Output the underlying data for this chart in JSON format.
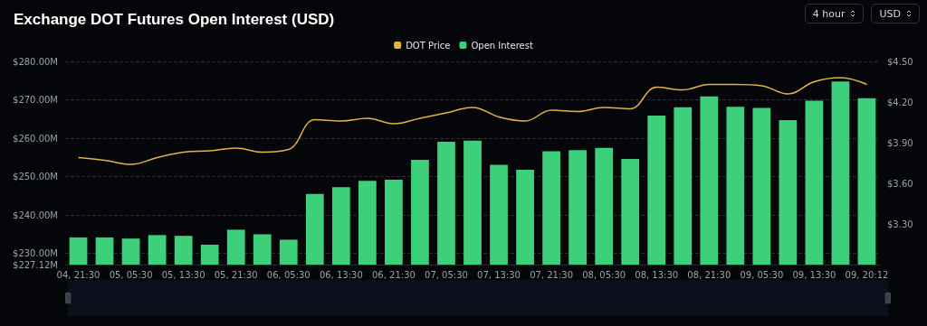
{
  "chart_data": {
    "type": "bar",
    "title": "Exchange DOT Futures Open Interest (USD)",
    "annotations": [
      "4 hour",
      "USD"
    ],
    "categories": [
      "04, 21:30",
      null,
      "05, 05:30",
      null,
      "05, 13:30",
      null,
      "05, 21:30",
      null,
      "06, 05:30",
      null,
      "06, 13:30",
      null,
      "06, 21:30",
      null,
      "07, 05:30",
      null,
      "07, 13:30",
      null,
      "07, 21:30",
      null,
      "08, 05:30",
      null,
      "08, 13:30",
      null,
      "08, 21:30",
      null,
      "09, 05:30",
      null,
      "09, 13:30",
      null,
      "09, 20:12"
    ],
    "series": [
      {
        "name": "DOT Price",
        "type": "line",
        "axis": "y2",
        "color": "#e3b341",
        "values": [
          3.79,
          3.77,
          3.74,
          3.79,
          3.83,
          3.84,
          3.86,
          3.83,
          3.85,
          4.07,
          4.06,
          4.08,
          4.04,
          4.08,
          4.12,
          4.16,
          4.09,
          4.06,
          4.14,
          4.13,
          4.16,
          4.15,
          4.31,
          4.29,
          4.33,
          4.33,
          4.32,
          4.26,
          4.35,
          4.38,
          4.33
        ]
      },
      {
        "name": "Open Interest",
        "color": "#3ecf7a",
        "values": [
          234.2,
          234.2,
          233.9,
          234.8,
          234.6,
          232.3,
          236.2,
          235.0,
          233.6,
          245.5,
          247.3,
          248.9,
          249.2,
          254.4,
          259.1,
          259.4,
          253.1,
          251.8,
          256.6,
          256.9,
          257.5,
          254.6,
          265.9,
          268.1,
          270.9,
          268.2,
          267.9,
          264.7,
          269.8,
          274.8,
          270.4
        ]
      }
    ],
    "ylim": [
      227.12,
      280
    ],
    "yticks": [
      {
        "value": 227.12,
        "label": "$227.12M"
      },
      {
        "value": 230,
        "label": "$230.00M"
      },
      {
        "value": 240,
        "label": "$240.00M"
      },
      {
        "value": 250,
        "label": "$250.00M"
      },
      {
        "value": 260,
        "label": "$260.00M"
      },
      {
        "value": 270,
        "label": "$270.00M"
      },
      {
        "value": 280,
        "label": "$280.00M"
      }
    ],
    "y2lim": [
      3.0,
      4.5
    ],
    "y2ticks": [
      {
        "value": 3.3,
        "label": "$3.30"
      },
      {
        "value": 3.6,
        "label": "$3.60"
      },
      {
        "value": 3.9,
        "label": "$3.90"
      },
      {
        "value": 4.2,
        "label": "$4.20"
      },
      {
        "value": 4.5,
        "label": "$4.50"
      }
    ],
    "grid": "y",
    "legend": "top",
    "marker": "none"
  }
}
